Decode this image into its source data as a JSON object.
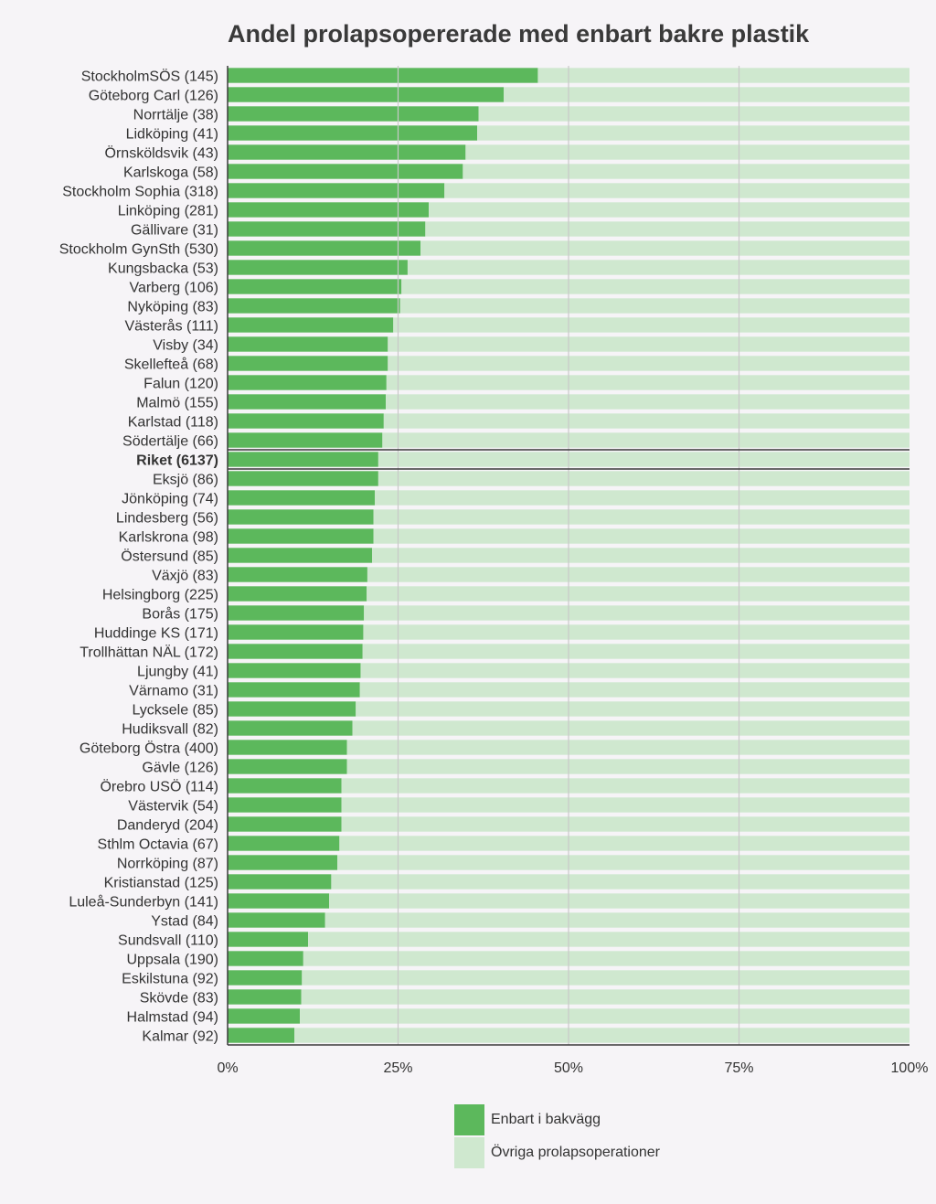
{
  "chart_data": {
    "type": "bar",
    "orientation": "horizontal",
    "stacked": true,
    "title": "Andel prolapsopererade med enbart bakre plastik",
    "xlim": [
      0,
      100
    ],
    "x_ticks": [
      "0%",
      "25%",
      "50%",
      "75%",
      "100%"
    ],
    "x_tick_values": [
      0,
      25,
      50,
      75,
      100
    ],
    "grid": true,
    "legend_position": "bottom",
    "highlight_category": "Riket (6137)",
    "colors": {
      "primary": "#5cb85c",
      "secondary": "#cfe8cf",
      "frame": "#3a3a3a",
      "grid": "#c9c9c9"
    },
    "categories": [
      "StockholmSÖS (145)",
      "Göteborg Carl (126)",
      "Norrtälje (38)",
      "Lidköping (41)",
      "Örnsköldsvik (43)",
      "Karlskoga (58)",
      "Stockholm Sophia (318)",
      "Linköping (281)",
      "Gällivare (31)",
      "Stockholm GynSth (530)",
      "Kungsbacka (53)",
      "Varberg (106)",
      "Nyköping (83)",
      "Västerås (111)",
      "Visby (34)",
      "Skellefteå (68)",
      "Falun (120)",
      "Malmö (155)",
      "Karlstad (118)",
      "Södertälje (66)",
      "Riket (6137)",
      "Eksjö (86)",
      "Jönköping (74)",
      "Lindesberg (56)",
      "Karlskrona (98)",
      "Östersund (85)",
      "Växjö (83)",
      "Helsingborg (225)",
      "Borås (175)",
      "Huddinge KS (171)",
      "Trollhättan NÄL (172)",
      "Ljungby (41)",
      "Värnamo (31)",
      "Lycksele (85)",
      "Hudiksvall (82)",
      "Göteborg Östra (400)",
      "Gävle (126)",
      "Örebro USÖ (114)",
      "Västervik (54)",
      "Danderyd (204)",
      "Sthlm Octavia (67)",
      "Norrköping (87)",
      "Kristianstad (125)",
      "Luleå-Sunderbyn (141)",
      "Ystad (84)",
      "Sundsvall (110)",
      "Uppsala (190)",
      "Eskilstuna (92)",
      "Skövde (83)",
      "Halmstad (94)",
      "Kalmar (92)"
    ],
    "series": [
      {
        "name": "Enbart i bakvägg",
        "values": [
          45.5,
          40.5,
          36.8,
          36.6,
          34.9,
          34.5,
          31.8,
          29.5,
          29.0,
          28.3,
          26.4,
          25.5,
          25.3,
          24.3,
          23.5,
          23.5,
          23.3,
          23.2,
          22.9,
          22.7,
          22.1,
          22.1,
          21.6,
          21.4,
          21.4,
          21.2,
          20.5,
          20.4,
          20.0,
          19.9,
          19.8,
          19.5,
          19.4,
          18.8,
          18.3,
          17.5,
          17.5,
          16.7,
          16.7,
          16.7,
          16.4,
          16.1,
          15.2,
          14.9,
          14.3,
          11.8,
          11.1,
          10.9,
          10.8,
          10.6,
          9.8
        ]
      },
      {
        "name": "Övriga prolapsoperationer",
        "values": [
          54.5,
          59.5,
          63.2,
          63.4,
          65.1,
          65.5,
          68.2,
          70.5,
          71.0,
          71.7,
          73.6,
          74.5,
          74.7,
          75.7,
          76.5,
          76.5,
          76.7,
          76.8,
          77.1,
          77.3,
          77.9,
          77.9,
          78.4,
          78.6,
          78.6,
          78.8,
          79.5,
          79.6,
          80.0,
          80.1,
          80.2,
          80.5,
          80.6,
          81.2,
          81.7,
          82.5,
          82.5,
          83.3,
          83.3,
          83.3,
          83.6,
          83.9,
          84.8,
          85.1,
          85.7,
          88.2,
          88.9,
          89.1,
          89.2,
          89.4,
          90.2
        ]
      }
    ]
  }
}
